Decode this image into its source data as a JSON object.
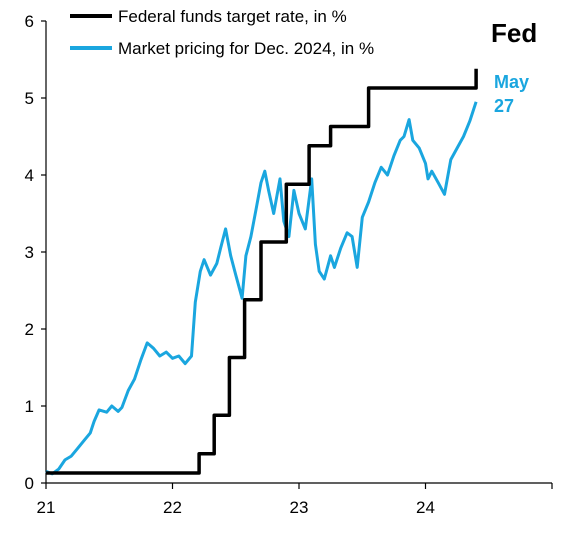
{
  "chart_data": {
    "type": "line",
    "title": "Fed",
    "xlabel": "",
    "ylabel": "",
    "x_ticks": [
      21,
      22,
      23,
      24
    ],
    "xlim": [
      21,
      25
    ],
    "ylim": [
      0,
      6
    ],
    "y_ticks": [
      0,
      1,
      2,
      3,
      4,
      5,
      6
    ],
    "grid": false,
    "legend_position": "top",
    "annotation": {
      "line1": "May",
      "line2": "27",
      "color": "#1AA6DF"
    },
    "series": [
      {
        "name": "Federal funds target rate, in %",
        "color": "#000000",
        "style": "step",
        "x": [
          21.0,
          22.21,
          22.33,
          22.45,
          22.57,
          22.7,
          22.9,
          23.08,
          23.25,
          23.55,
          24.4
        ],
        "y": [
          0.13,
          0.38,
          0.88,
          1.63,
          2.38,
          3.13,
          3.88,
          4.38,
          4.63,
          5.13,
          5.38
        ]
      },
      {
        "name": "Market pricing for Dec. 2024, in %",
        "color": "#1AA6DF",
        "style": "line",
        "x": [
          21.0,
          21.05,
          21.1,
          21.15,
          21.2,
          21.25,
          21.3,
          21.35,
          21.38,
          21.42,
          21.48,
          21.52,
          21.57,
          21.6,
          21.65,
          21.7,
          21.75,
          21.8,
          21.85,
          21.9,
          21.95,
          22.0,
          22.05,
          22.1,
          22.15,
          22.18,
          22.22,
          22.25,
          22.3,
          22.35,
          22.38,
          22.42,
          22.46,
          22.5,
          22.55,
          22.58,
          22.62,
          22.66,
          22.7,
          22.73,
          22.76,
          22.8,
          22.85,
          22.88,
          22.92,
          22.96,
          23.0,
          23.05,
          23.1,
          23.13,
          23.16,
          23.2,
          23.25,
          23.28,
          23.33,
          23.38,
          23.42,
          23.46,
          23.5,
          23.55,
          23.6,
          23.65,
          23.7,
          23.75,
          23.8,
          23.83,
          23.87,
          23.9,
          23.95,
          24.0,
          24.02,
          24.05,
          24.1,
          24.15,
          24.2,
          24.25,
          24.3,
          24.35,
          24.4
        ],
        "y": [
          0.15,
          0.12,
          0.18,
          0.3,
          0.35,
          0.45,
          0.55,
          0.65,
          0.8,
          0.95,
          0.92,
          1.0,
          0.93,
          0.98,
          1.2,
          1.35,
          1.6,
          1.82,
          1.75,
          1.65,
          1.7,
          1.62,
          1.65,
          1.55,
          1.65,
          2.35,
          2.75,
          2.9,
          2.7,
          2.85,
          3.05,
          3.3,
          2.95,
          2.7,
          2.4,
          2.95,
          3.2,
          3.55,
          3.9,
          4.05,
          3.8,
          3.5,
          3.95,
          3.4,
          3.2,
          3.8,
          3.5,
          3.3,
          3.95,
          3.1,
          2.75,
          2.65,
          2.95,
          2.8,
          3.05,
          3.25,
          3.2,
          2.8,
          3.45,
          3.65,
          3.9,
          4.1,
          4.0,
          4.25,
          4.45,
          4.5,
          4.72,
          4.45,
          4.35,
          4.15,
          3.95,
          4.05,
          3.9,
          3.75,
          4.2,
          4.35,
          4.5,
          4.7,
          4.95
        ]
      }
    ]
  }
}
